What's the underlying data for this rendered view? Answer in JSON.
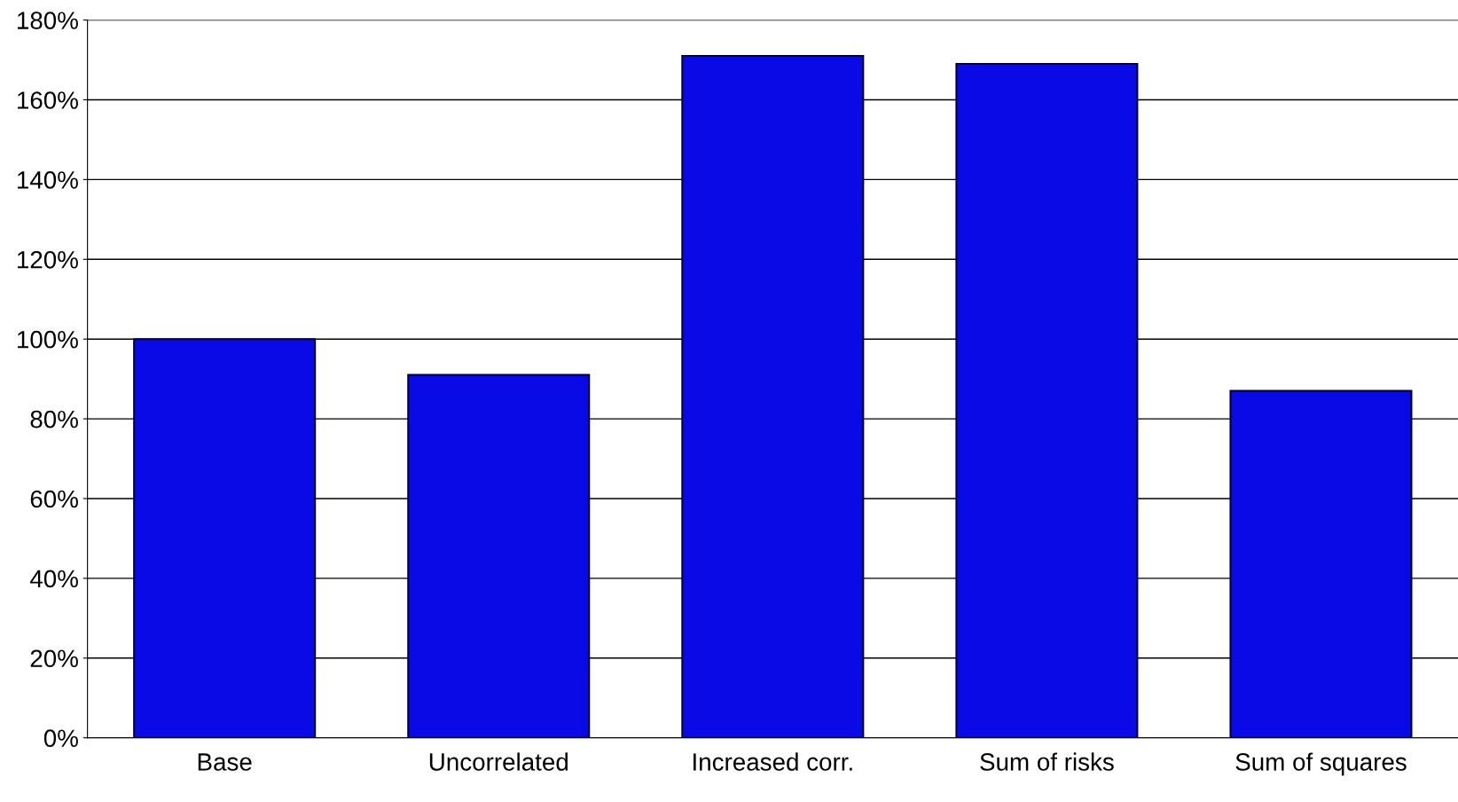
{
  "chart_data": {
    "type": "bar",
    "categories": [
      "Base",
      "Uncorrelated",
      "Increased corr.",
      "Sum of risks",
      "Sum of squares"
    ],
    "values": [
      100,
      91,
      171,
      169,
      87
    ],
    "color": "#0a0ae6",
    "ylim": [
      0,
      180
    ],
    "yticks": [
      {
        "value": 0,
        "label": "0%"
      },
      {
        "value": 20,
        "label": "20%"
      },
      {
        "value": 40,
        "label": "40%"
      },
      {
        "value": 60,
        "label": "60%"
      },
      {
        "value": 80,
        "label": "80%"
      },
      {
        "value": 100,
        "label": "100%"
      },
      {
        "value": 120,
        "label": "120%"
      },
      {
        "value": 140,
        "label": "140%"
      },
      {
        "value": 160,
        "label": "160%"
      },
      {
        "value": 180,
        "label": "180%"
      }
    ],
    "grid": "y"
  }
}
